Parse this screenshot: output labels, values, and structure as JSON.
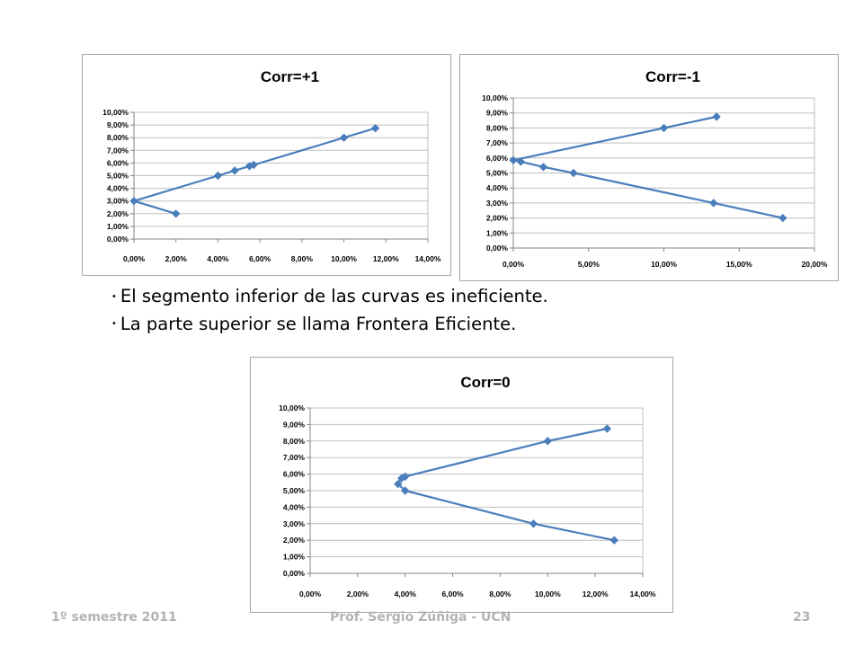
{
  "chart_data": [
    {
      "type": "scatter",
      "title": "Corr=+1",
      "xlabel": "",
      "ylabel": "",
      "xlim": [
        0,
        14
      ],
      "ylim": [
        0,
        10
      ],
      "x_ticks": [
        "0,00%",
        "2,00%",
        "4,00%",
        "6,00%",
        "8,00%",
        "10,00%",
        "12,00%",
        "14,00%"
      ],
      "y_ticks": [
        "0,00%",
        "1,00%",
        "2,00%",
        "3,00%",
        "4,00%",
        "5,00%",
        "6,00%",
        "7,00%",
        "8,00%",
        "9,00%",
        "10,00%"
      ],
      "grid": true,
      "series": [
        {
          "x": [
            2.0,
            0.0,
            4.0,
            4.8,
            5.5,
            5.7,
            10.0,
            11.5
          ],
          "y": [
            2.0,
            3.0,
            5.0,
            5.4,
            5.75,
            5.85,
            8.0,
            8.75
          ]
        }
      ]
    },
    {
      "type": "scatter",
      "title": "Corr=-1",
      "xlabel": "",
      "ylabel": "",
      "xlim": [
        0,
        20
      ],
      "ylim": [
        0,
        10
      ],
      "x_ticks": [
        "0,00%",
        "5,00%",
        "10,00%",
        "15,00%",
        "20,00%"
      ],
      "y_ticks": [
        "0,00%",
        "1,00%",
        "2,00%",
        "3,00%",
        "4,00%",
        "5,00%",
        "6,00%",
        "7,00%",
        "8,00%",
        "9,00%",
        "10,00%"
      ],
      "grid": true,
      "series": [
        {
          "x": [
            17.9,
            13.3,
            4.0,
            2.0,
            0.5,
            0.0,
            10.0,
            13.5
          ],
          "y": [
            2.0,
            3.0,
            5.0,
            5.4,
            5.75,
            5.85,
            8.0,
            8.75
          ]
        }
      ]
    },
    {
      "type": "scatter",
      "title": "Corr=0",
      "xlabel": "",
      "ylabel": "",
      "xlim": [
        0,
        14
      ],
      "ylim": [
        0,
        10
      ],
      "x_ticks": [
        "0,00%",
        "2,00%",
        "4,00%",
        "6,00%",
        "8,00%",
        "10,00%",
        "12,00%",
        "14,00%"
      ],
      "y_ticks": [
        "0,00%",
        "1,00%",
        "2,00%",
        "3,00%",
        "4,00%",
        "5,00%",
        "6,00%",
        "7,00%",
        "8,00%",
        "9,00%",
        "10,00%"
      ],
      "grid": true,
      "series": [
        {
          "x": [
            12.8,
            9.4,
            4.0,
            3.7,
            3.85,
            4.0,
            10.0,
            12.5
          ],
          "y": [
            2.0,
            3.0,
            5.0,
            5.4,
            5.75,
            5.85,
            8.0,
            8.75
          ]
        }
      ]
    }
  ],
  "series_color": "#4a7ebb",
  "grid_color": "#bfbfbf",
  "bullets": [
    "El segmento inferior de las curvas es ineficiente.",
    "La parte superior se llama Frontera Eficiente."
  ],
  "footer": {
    "left": "1º semestre 2011",
    "center": "Prof. Sergio Zúñiga - UCN",
    "page": "23"
  }
}
